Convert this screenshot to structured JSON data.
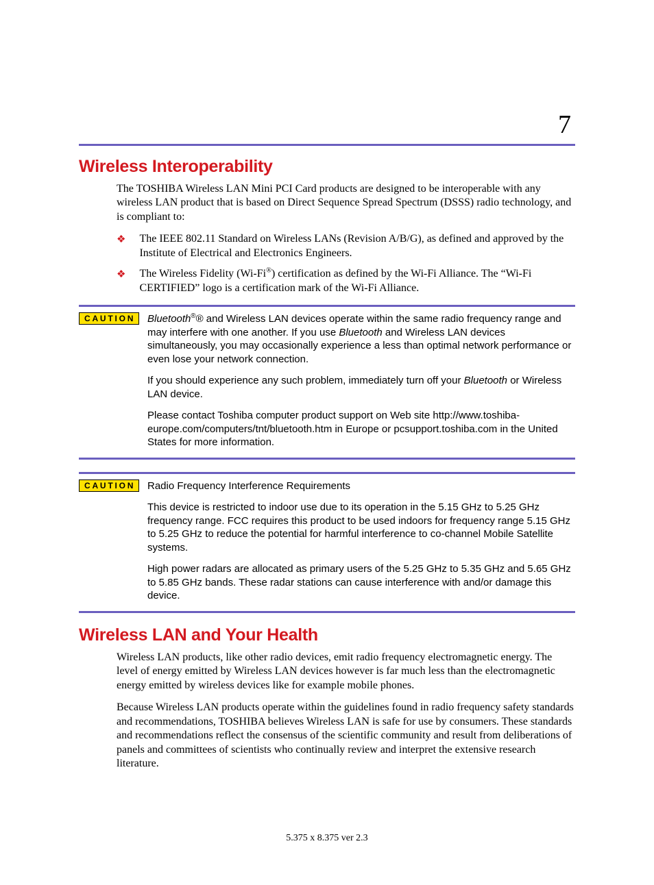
{
  "page_number": "7",
  "colors": {
    "heading_red": "#d31920",
    "rule_purple": "#6b5fbf",
    "caution_yellow": "#ffe200",
    "bullet_red": "#d31920"
  },
  "section1": {
    "heading": "Wireless Interoperability",
    "intro": "The TOSHIBA Wireless LAN Mini PCI Card products are designed to be interoperable with any wireless LAN product that is based on Direct Sequence Spread Spectrum (DSSS) radio technology, and is compliant to:",
    "bullets": [
      "The IEEE 802.11 Standard on Wireless LANs (Revision A/B/G), as defined and approved by the Institute of Electrical and Electronics Engineers.",
      "The Wireless Fidelity (Wi-Fi®) certification as defined by the Wi-Fi Alliance. The \"Wi-Fi CERTIFIED\" logo is a certification mark of the Wi-Fi Alliance."
    ]
  },
  "caution1": {
    "label": "CAUTION",
    "p1_a": "Bluetooth",
    "p1_b": "® and Wireless LAN devices operate within the same radio frequency range and may interfere with one another. If you use ",
    "p1_c": "Bluetooth",
    "p1_d": " and Wireless LAN devices simultaneously, you may occasionally experience a less than optimal network performance or even lose your network connection.",
    "p2_a": "If you should experience any such problem, immediately turn off your ",
    "p2_b": "Bluetooth",
    "p2_c": " or Wireless LAN device.",
    "p3": "Please contact Toshiba computer product support on Web site http://www.toshiba-europe.com/computers/tnt/bluetooth.htm in Europe or pcsupport.toshiba.com in the United States for more information."
  },
  "caution2": {
    "label": "CAUTION",
    "p1": "Radio Frequency Interference Requirements",
    "p2": "This device is restricted to indoor use due to its operation in the 5.15 GHz to 5.25 GHz frequency range. FCC requires this product to be used indoors for frequency range 5.15 GHz to 5.25 GHz to reduce the potential for harmful interference to co-channel Mobile Satellite systems.",
    "p3": "High power radars are allocated as primary users of the 5.25 GHz to 5.35 GHz and 5.65 GHz to 5.85 GHz bands. These radar stations can cause interference with and/or damage this device."
  },
  "section2": {
    "heading": "Wireless LAN and Your Health",
    "p1": "Wireless LAN products, like other radio devices, emit radio frequency electromagnetic energy. The level of energy emitted by Wireless LAN devices however is far much less than the electromagnetic energy emitted by wireless devices like for example mobile phones.",
    "p2": "Because Wireless LAN products operate within the guidelines found in radio frequency safety standards and recommendations, TOSHIBA believes Wireless LAN is safe for use by consumers. These standards and recommendations reflect the consensus of the scientific community and result from deliberations of panels and committees of scientists who continually review and interpret the extensive research literature."
  },
  "footer": "5.375 x 8.375 ver 2.3"
}
